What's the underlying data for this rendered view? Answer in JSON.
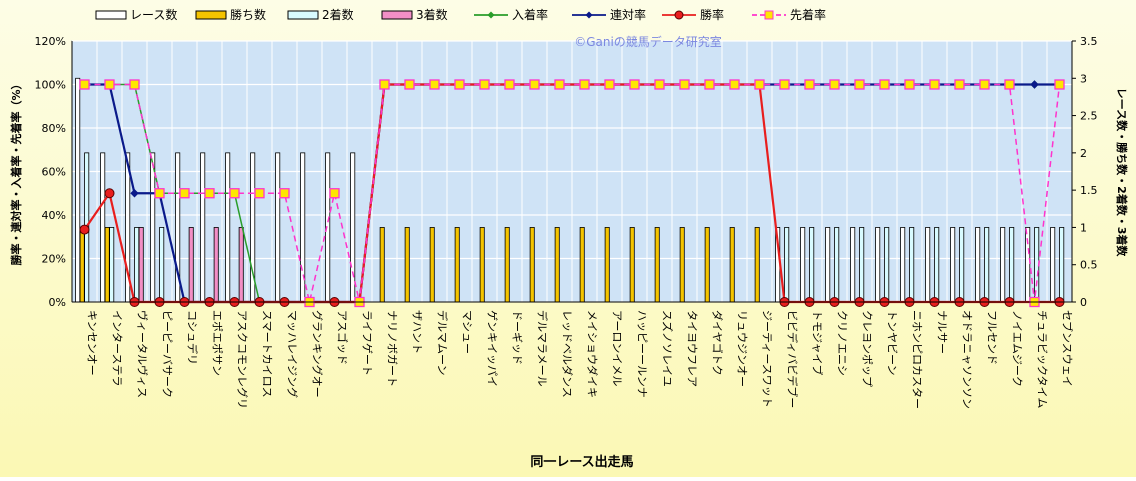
{
  "chart_data": {
    "type": "bar",
    "watermark": "©Ganiの競馬データ研究室",
    "xlabel": "同一レース出走馬",
    "ylabel_left": "勝率・連対率・入着率・先着率（%）",
    "ylabel_right": "レース数・勝ち数・2着数・3着数",
    "ylim_left": [
      0,
      120
    ],
    "ylim_right": [
      0,
      3.5
    ],
    "left_ticks": [
      "0%",
      "20%",
      "40%",
      "60%",
      "80%",
      "100%",
      "120%"
    ],
    "right_ticks": [
      "0",
      "0.5",
      "1",
      "1.5",
      "2",
      "2.5",
      "3",
      "3.5"
    ],
    "grid": true,
    "legend_position": "top",
    "categories": [
      "キンセンオー",
      "インターステラ",
      "ヴィータルヴィス",
      "ピーピーバサーク",
      "コシュデリ",
      "エポエポサン",
      "アスクコモンレグリ",
      "スマートカイロス",
      "マッハレイジング",
      "グランキングオー",
      "アスゴッド",
      "ライフゲート",
      "ナリノボガート",
      "ザハント",
      "デルマムーン",
      "マシュー",
      "ゲンキイッパイ",
      "ドーギッド",
      "デルマラメール",
      "レッドベルダンス",
      "メイショウダイキ",
      "アーロンイメル",
      "ハッピーールンナ",
      "スズノソレイユ",
      "タイヨウフレア",
      "ダイヤゴトク",
      "リュウジンオー",
      "ジーティースワット",
      "ビビディバビデブー",
      "トモジャイブ",
      "クリノエニシ",
      "クレヨンポップ",
      "トンヤビーン",
      "ニホンピロカスター",
      "ナルサー",
      "オドラニャソンソン",
      "フルセンド",
      "ノイエムジーク",
      "チュラビックタイム",
      "セブンスウェイ"
    ],
    "series": [
      {
        "name": "レース数",
        "axis": "right",
        "kind": "bar",
        "color": "#ffffff",
        "values": [
          3,
          2,
          2,
          2,
          2,
          2,
          2,
          2,
          2,
          2,
          2,
          2,
          0,
          0,
          0,
          0,
          0,
          0,
          0,
          0,
          0,
          0,
          0,
          0,
          0,
          0,
          0,
          0,
          1,
          1,
          1,
          1,
          1,
          1,
          1,
          1,
          1,
          1,
          1,
          1
        ]
      },
      {
        "name": "勝ち数",
        "axis": "right",
        "kind": "bar",
        "color": "#f5c400",
        "values": [
          1,
          1,
          0,
          0,
          0,
          0,
          0,
          0,
          0,
          0,
          0,
          0,
          1,
          1,
          1,
          1,
          1,
          1,
          1,
          1,
          1,
          1,
          1,
          1,
          1,
          1,
          1,
          1,
          0,
          0,
          0,
          0,
          0,
          0,
          0,
          0,
          0,
          0,
          0,
          0
        ]
      },
      {
        "name": "2着数",
        "axis": "right",
        "kind": "bar",
        "color": "#d8fbff",
        "values": [
          2,
          1,
          1,
          1,
          0,
          0,
          0,
          0,
          0,
          0,
          0,
          0,
          0,
          0,
          0,
          0,
          0,
          0,
          0,
          0,
          0,
          0,
          0,
          0,
          0,
          0,
          0,
          0,
          1,
          1,
          1,
          1,
          1,
          1,
          1,
          1,
          1,
          1,
          1,
          1
        ]
      },
      {
        "name": "3着数",
        "axis": "right",
        "kind": "bar",
        "color": "#f28fc6",
        "values": [
          0,
          0,
          1,
          0,
          1,
          1,
          1,
          0,
          0,
          0,
          0,
          0,
          0,
          0,
          0,
          0,
          0,
          0,
          0,
          0,
          0,
          0,
          0,
          0,
          0,
          0,
          0,
          0,
          0,
          0,
          0,
          0,
          0,
          0,
          0,
          0,
          0,
          0,
          0,
          0
        ]
      },
      {
        "name": "入着率",
        "axis": "left",
        "kind": "line",
        "color": "#2a9d2a",
        "marker": "diamond",
        "values": [
          100,
          100,
          100,
          50,
          50,
          50,
          50,
          0,
          0,
          0,
          0,
          0,
          100,
          100,
          100,
          100,
          100,
          100,
          100,
          100,
          100,
          100,
          100,
          100,
          100,
          100,
          100,
          100,
          100,
          100,
          100,
          100,
          100,
          100,
          100,
          100,
          100,
          100,
          100,
          100
        ]
      },
      {
        "name": "連対率",
        "axis": "left",
        "kind": "line",
        "color": "#0a1a8a",
        "marker": "diamond",
        "values": [
          100,
          100,
          50,
          50,
          0,
          0,
          0,
          0,
          0,
          0,
          0,
          0,
          100,
          100,
          100,
          100,
          100,
          100,
          100,
          100,
          100,
          100,
          100,
          100,
          100,
          100,
          100,
          100,
          100,
          100,
          100,
          100,
          100,
          100,
          100,
          100,
          100,
          100,
          100,
          100
        ]
      },
      {
        "name": "勝率",
        "axis": "left",
        "kind": "line",
        "color": "#e81e1e",
        "marker": "circle",
        "values": [
          33.3,
          50,
          0,
          0,
          0,
          0,
          0,
          0,
          0,
          0,
          0,
          0,
          100,
          100,
          100,
          100,
          100,
          100,
          100,
          100,
          100,
          100,
          100,
          100,
          100,
          100,
          100,
          100,
          0,
          0,
          0,
          0,
          0,
          0,
          0,
          0,
          0,
          0,
          0,
          0
        ]
      },
      {
        "name": "先着率",
        "axis": "left",
        "kind": "line",
        "color": "#ff33cc",
        "marker": "square",
        "dashed": true,
        "values": [
          100,
          100,
          100,
          50,
          50,
          50,
          50,
          50,
          50,
          0,
          50,
          0,
          100,
          100,
          100,
          100,
          100,
          100,
          100,
          100,
          100,
          100,
          100,
          100,
          100,
          100,
          100,
          100,
          100,
          100,
          100,
          100,
          100,
          100,
          100,
          100,
          100,
          100,
          0,
          100
        ]
      }
    ]
  }
}
